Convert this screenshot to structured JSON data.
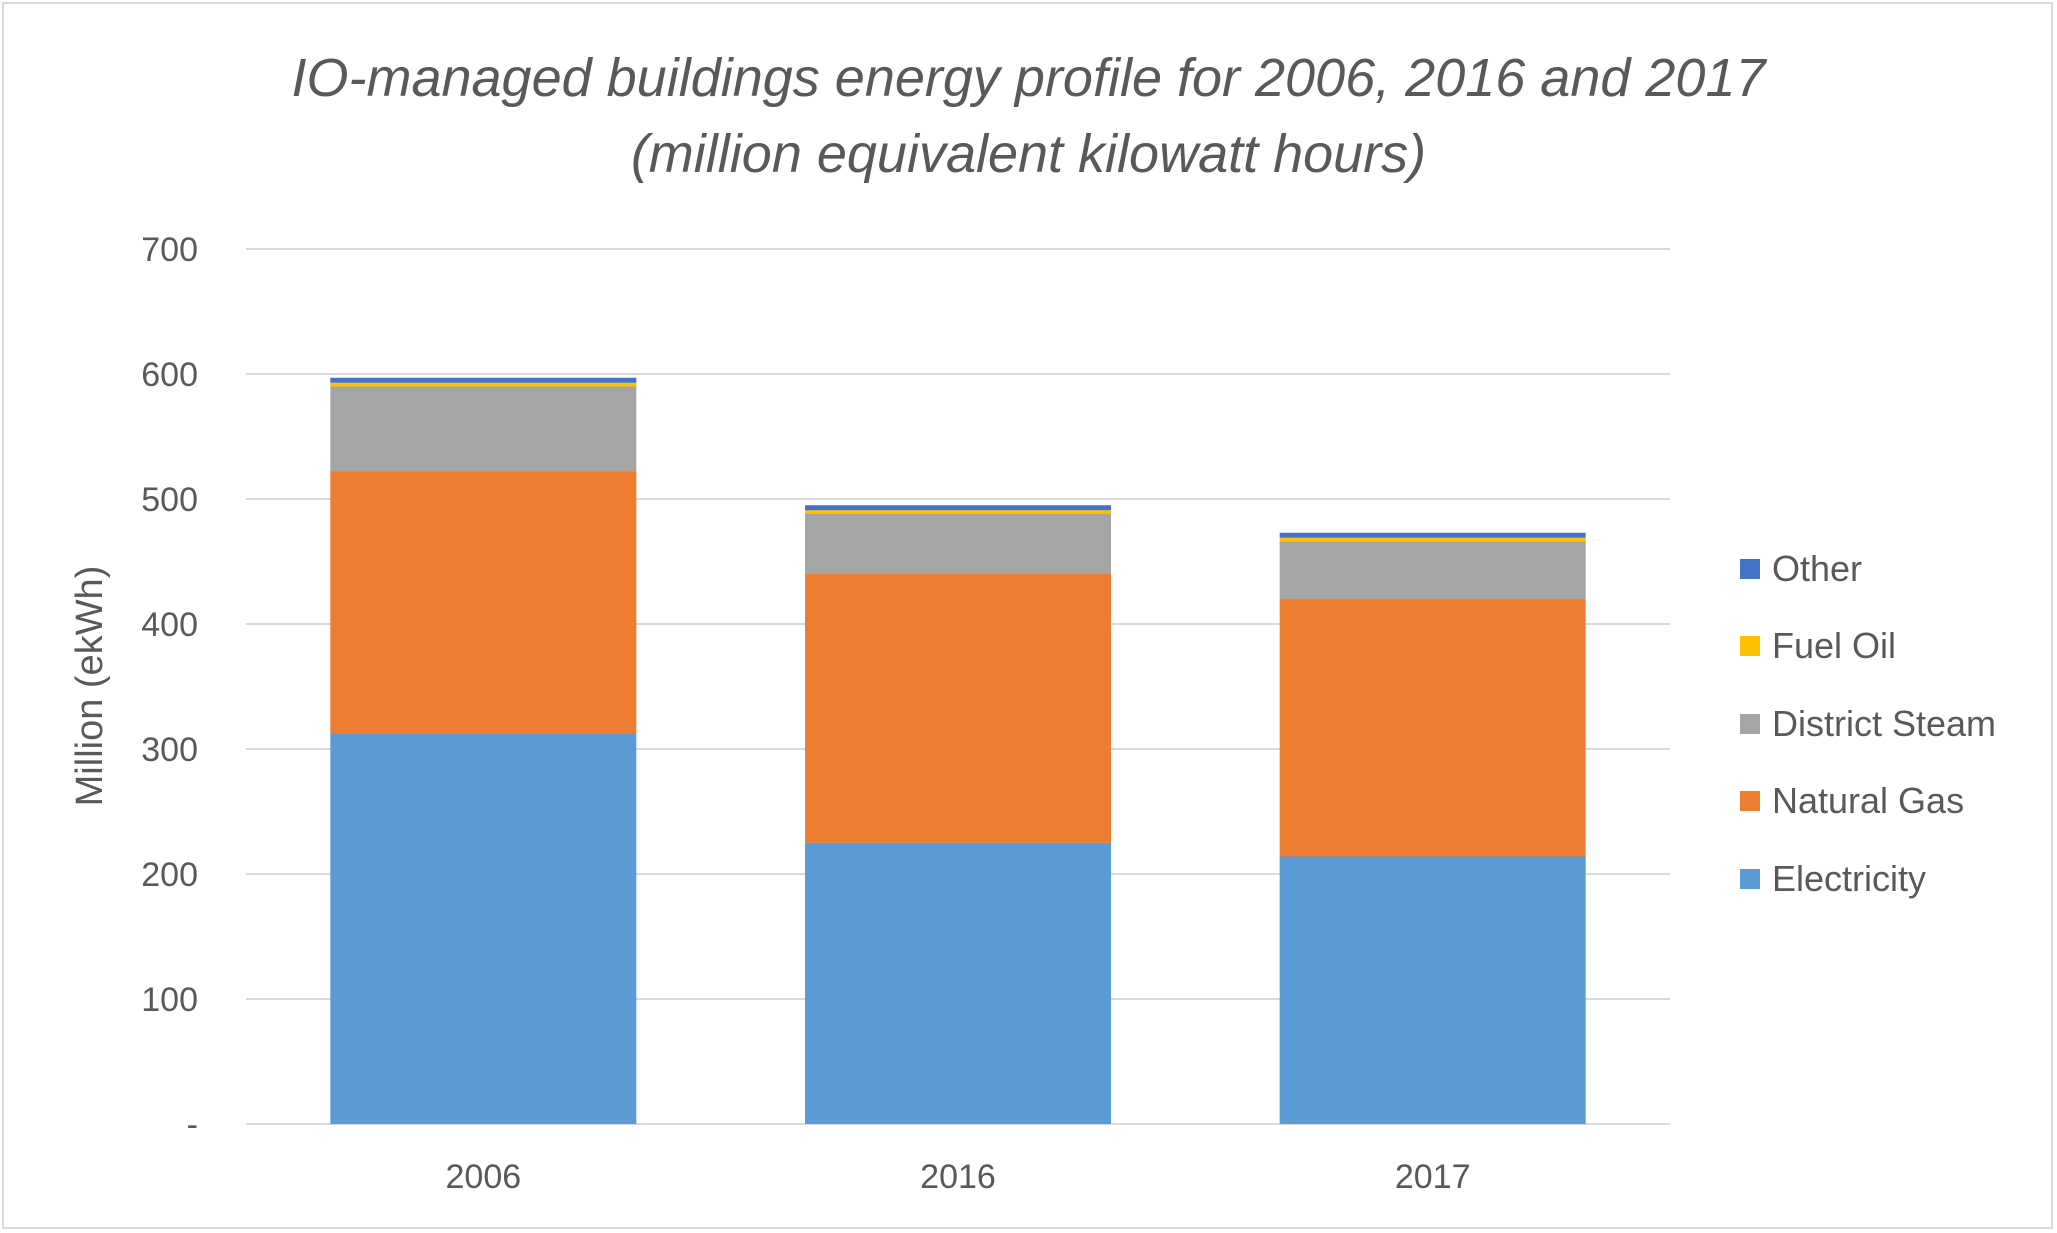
{
  "chart_data": {
    "type": "bar",
    "stacked": true,
    "title_lines": [
      "IO-managed buildings energy profile for 2006, 2016 and 2017",
      "(million equivalent kilowatt hours)"
    ],
    "ylabel": "Million (ekWh)",
    "xlabel": "",
    "ylim": [
      0,
      700
    ],
    "yticks": [
      {
        "value": 0,
        "label": "-"
      },
      {
        "value": 100,
        "label": "100"
      },
      {
        "value": 200,
        "label": "200"
      },
      {
        "value": 300,
        "label": "300"
      },
      {
        "value": 400,
        "label": "400"
      },
      {
        "value": 500,
        "label": "500"
      },
      {
        "value": 600,
        "label": "600"
      },
      {
        "value": 700,
        "label": "700"
      }
    ],
    "grid": true,
    "legend_position": "right",
    "categories": [
      "2006",
      "2016",
      "2017"
    ],
    "series": [
      {
        "name": "Electricity",
        "color": "#5b9bd5",
        "values": [
          312,
          225,
          214
        ]
      },
      {
        "name": "Natural Gas",
        "color": "#ed7d31",
        "values": [
          210,
          215,
          206
        ]
      },
      {
        "name": "District Steam",
        "color": "#a5a5a5",
        "values": [
          68,
          48,
          46
        ]
      },
      {
        "name": "Fuel Oil",
        "color": "#ffc000",
        "values": [
          3,
          3,
          3
        ]
      },
      {
        "name": "Other",
        "color": "#4472c4",
        "values": [
          4,
          4,
          4
        ]
      }
    ],
    "legend_order": [
      "Other",
      "Fuel Oil",
      "District Steam",
      "Natural Gas",
      "Electricity"
    ]
  },
  "colors": {
    "gridline": "#d9d9d9",
    "axis_line": "#d9d9d9",
    "text": "#595959"
  }
}
